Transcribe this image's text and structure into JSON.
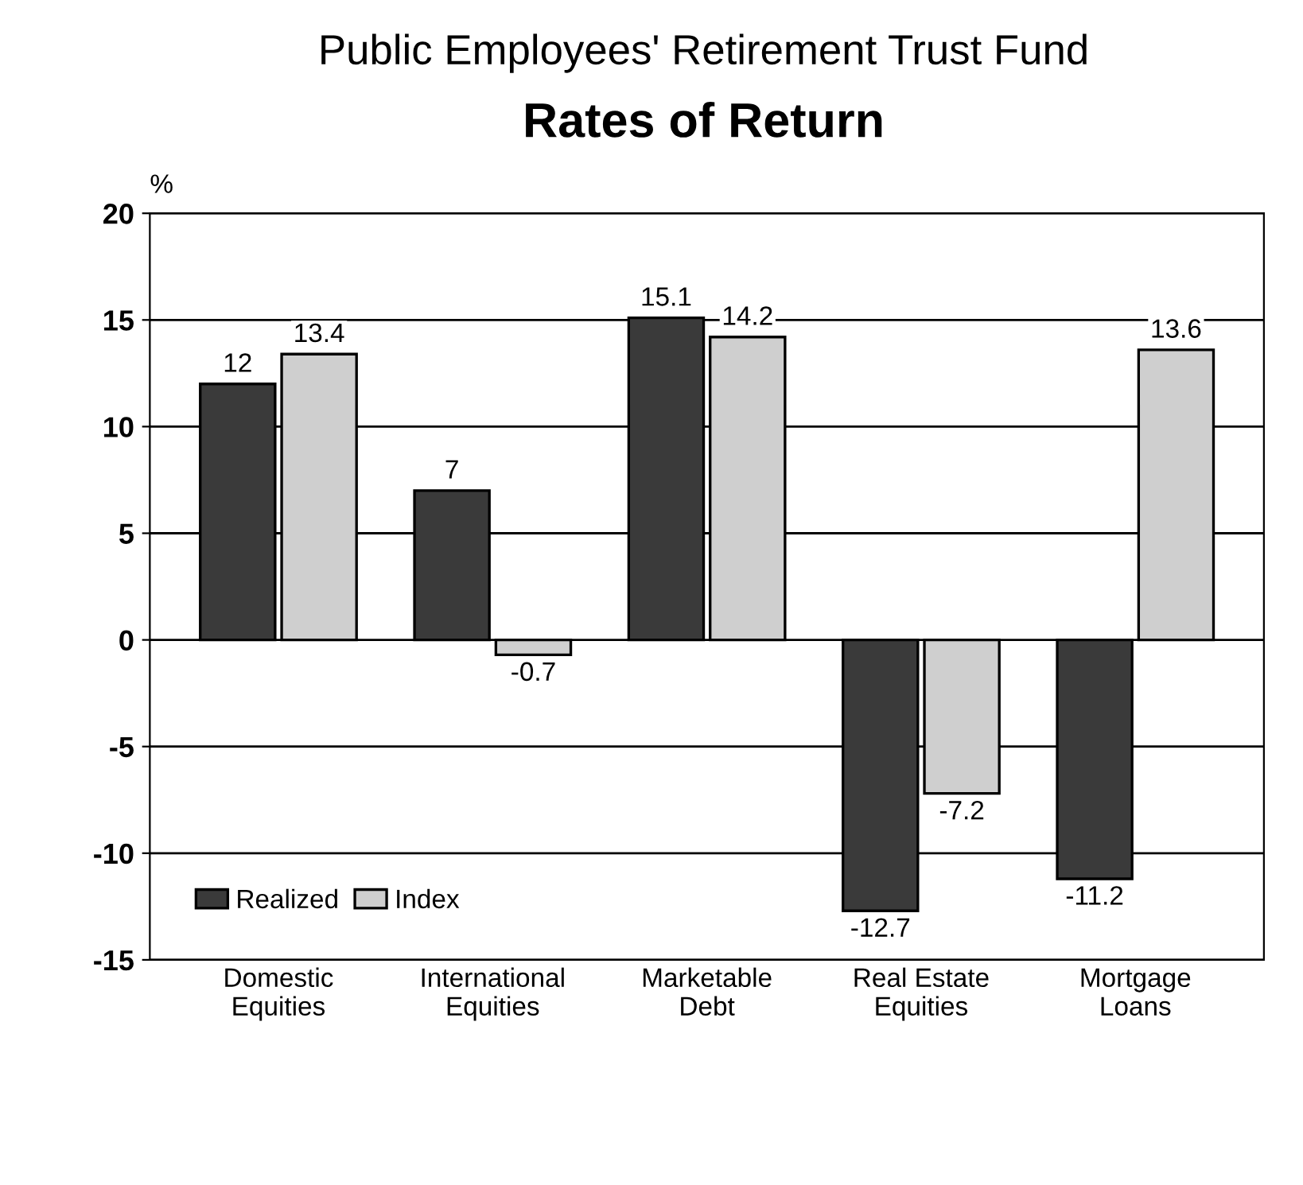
{
  "chart_data": {
    "type": "bar",
    "title": "Rates of Return",
    "subtitle": "Public Employees' Retirement Trust Fund",
    "ylabel": "%",
    "categories": [
      "Domestic\nEquities",
      "International\nEquities",
      "Marketable\nDebt",
      "Real Estate\nEquities",
      "Mortgage\nLoans"
    ],
    "series": [
      {
        "name": "Realized",
        "color": "#3a3a3a",
        "values": [
          12,
          7,
          15.1,
          -12.7,
          -11.2
        ]
      },
      {
        "name": "Index",
        "color": "#cfcfcf",
        "values": [
          13.4,
          -0.7,
          14.2,
          -7.2,
          13.6
        ]
      }
    ],
    "ylim": [
      -15,
      20
    ],
    "yticks": [
      -15,
      -10,
      -5,
      0,
      5,
      10,
      15,
      20
    ],
    "grid": "y",
    "legend": "bottom left",
    "data_labels": true
  }
}
